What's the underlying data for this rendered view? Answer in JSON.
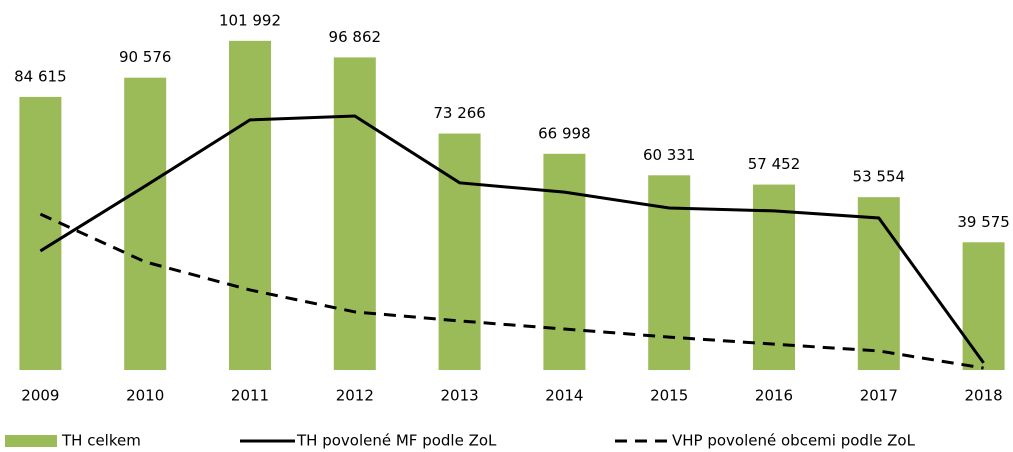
{
  "chart_data": {
    "type": "bar",
    "categories": [
      "2009",
      "2010",
      "2011",
      "2012",
      "2013",
      "2014",
      "2015",
      "2016",
      "2017",
      "2018"
    ],
    "ylim": [
      0,
      110000
    ],
    "series": [
      {
        "name": "TH celkem",
        "type": "bar",
        "color": "#9bbb59",
        "values": [
          84615,
          90576,
          101992,
          96862,
          73266,
          66998,
          60331,
          57452,
          53554,
          39575
        ],
        "value_labels": [
          "84 615",
          "90 576",
          "101 992",
          "96 862",
          "73 266",
          "66 998",
          "60 331",
          "57 452",
          "53 554",
          "39 575"
        ]
      },
      {
        "name": "TH povolené MF podle ZoL",
        "type": "line",
        "color": "#000000",
        "linestyle": "solid",
        "values": [
          36900,
          57000,
          77500,
          78700,
          58000,
          55100,
          50200,
          49300,
          47100,
          2200
        ]
      },
      {
        "name": "VHP povolené obcemi podle ZoL",
        "type": "line",
        "color": "#000000",
        "linestyle": "dashed",
        "values": [
          48300,
          33500,
          24800,
          18000,
          15200,
          12700,
          10200,
          8000,
          5900,
          600
        ]
      }
    ]
  }
}
